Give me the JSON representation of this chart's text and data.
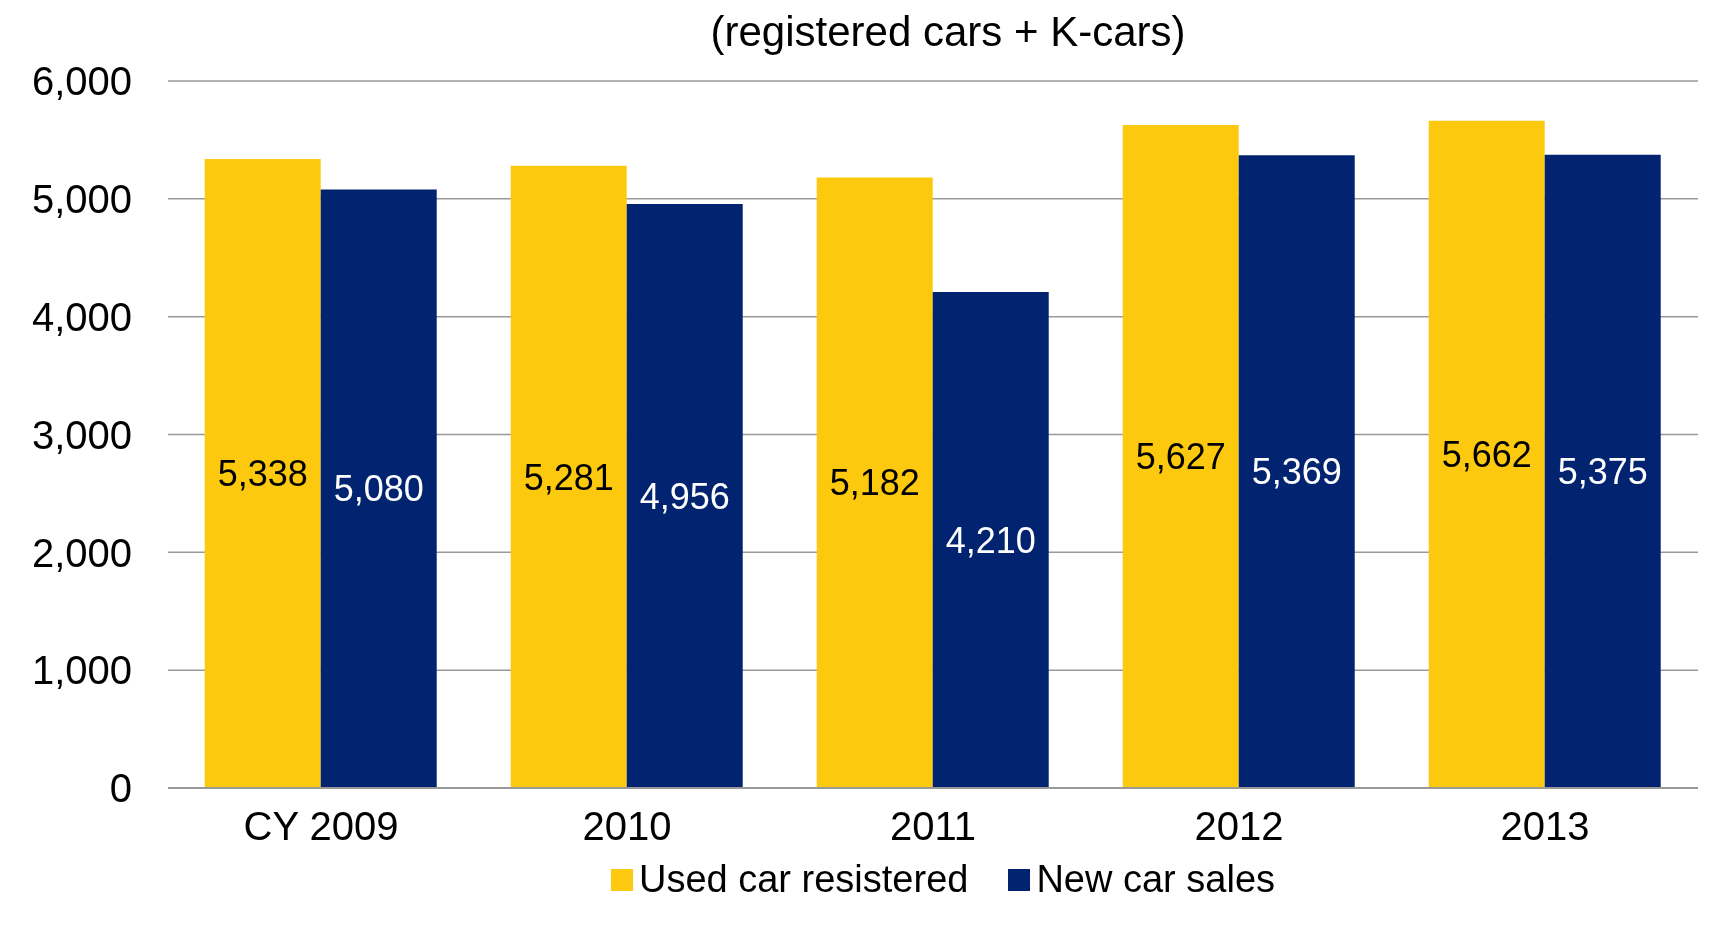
{
  "chart_data": {
    "type": "bar",
    "title": "(registered cars + K-cars)",
    "categories": [
      "CY  2009",
      "2010",
      "2011",
      "2012",
      "2013"
    ],
    "series": [
      {
        "name": "Used car resistered",
        "color": "#fcc90f",
        "values": [
          5338,
          5281,
          5182,
          5627,
          5662
        ],
        "value_labels": [
          "5,338",
          "5,281",
          "5,182",
          "5,627",
          "5,662"
        ]
      },
      {
        "name": "New car sales",
        "color": "#022470",
        "values": [
          5080,
          4956,
          4210,
          5369,
          5375
        ],
        "value_labels": [
          "5,080",
          "4,956",
          "4,210",
          "5,369",
          "5,375"
        ]
      }
    ],
    "ylim": [
      0,
      6000
    ],
    "yticks": [
      {
        "value": 0,
        "label": "0"
      },
      {
        "value": 1000,
        "label": "1,000"
      },
      {
        "value": 2000,
        "label": "2,000"
      },
      {
        "value": 3000,
        "label": "3,000"
      },
      {
        "value": 4000,
        "label": "4,000"
      },
      {
        "value": 5000,
        "label": "5,000"
      },
      {
        "value": 6000,
        "label": "6,000"
      }
    ],
    "grid": "y",
    "legend": "bottom"
  }
}
